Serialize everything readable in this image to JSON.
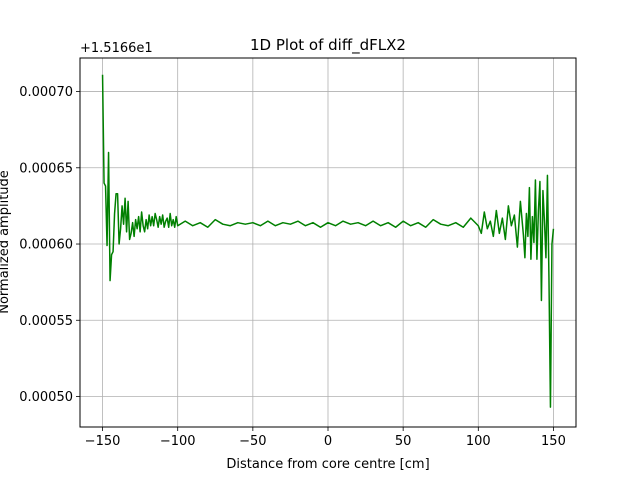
{
  "chart_data": {
    "type": "line",
    "title": "1D Plot of diff_dFLX2",
    "xlabel": "Distance from core centre [cm]",
    "ylabel": "Normalized amplitude",
    "offset_text": "+1.5166e1",
    "xlim": [
      -165,
      165
    ],
    "ylim": [
      0.00048,
      0.000722
    ],
    "xticks": [
      -150,
      -100,
      -50,
      0,
      50,
      100,
      150
    ],
    "xtick_labels": [
      "−150",
      "−100",
      "−50",
      "0",
      "50",
      "100",
      "150"
    ],
    "yticks": [
      0.0005,
      0.00055,
      0.0006,
      0.00065,
      0.0007
    ],
    "ytick_labels": [
      "0.00050",
      "0.00055",
      "0.00060",
      "0.00065",
      "0.00070"
    ],
    "grid": true,
    "series": [
      {
        "color": "#008000",
        "x": [
          -150,
          -149,
          -148,
          -147,
          -146,
          -145,
          -144,
          -143,
          -142,
          -141,
          -140,
          -139,
          -138,
          -137,
          -136,
          -135,
          -134,
          -133,
          -132,
          -131,
          -130,
          -129,
          -128,
          -127,
          -126,
          -125,
          -124,
          -123,
          -122,
          -121,
          -120,
          -119,
          -118,
          -117,
          -116,
          -115,
          -114,
          -113,
          -112,
          -111,
          -110,
          -109,
          -108,
          -107,
          -106,
          -105,
          -104,
          -103,
          -102,
          -101,
          -100,
          -95,
          -90,
          -85,
          -80,
          -75,
          -70,
          -65,
          -60,
          -55,
          -50,
          -45,
          -40,
          -35,
          -30,
          -25,
          -20,
          -15,
          -10,
          -5,
          0,
          5,
          10,
          15,
          20,
          25,
          30,
          35,
          40,
          45,
          50,
          55,
          60,
          65,
          70,
          75,
          80,
          85,
          90,
          95,
          100,
          102,
          104,
          106,
          108,
          110,
          112,
          114,
          116,
          118,
          120,
          122,
          124,
          126,
          128,
          130,
          131,
          132,
          133,
          134,
          135,
          136,
          137,
          138,
          139,
          140,
          141,
          142,
          143,
          144,
          145,
          146,
          147,
          148,
          149,
          150
        ],
        "y": [
          0.000711,
          0.00064,
          0.000638,
          0.000599,
          0.00066,
          0.000576,
          0.000593,
          0.000595,
          0.00062,
          0.000633,
          0.000633,
          0.0006,
          0.00061,
          0.000625,
          0.000613,
          0.00063,
          0.000608,
          0.000628,
          0.000603,
          0.000607,
          0.000614,
          0.000605,
          0.000616,
          0.00061,
          0.000618,
          0.000608,
          0.000621,
          0.000612,
          0.000608,
          0.000616,
          0.00061,
          0.000619,
          0.000612,
          0.000618,
          0.000612,
          0.00062,
          0.000616,
          0.000611,
          0.000618,
          0.000613,
          0.000619,
          0.000611,
          0.000615,
          0.000617,
          0.000611,
          0.00062,
          0.000612,
          0.000616,
          0.000611,
          0.000618,
          0.000612,
          0.000615,
          0.000612,
          0.000614,
          0.000611,
          0.000616,
          0.000613,
          0.000612,
          0.000614,
          0.000613,
          0.000614,
          0.000612,
          0.000615,
          0.000612,
          0.000614,
          0.000613,
          0.000615,
          0.000612,
          0.000614,
          0.000611,
          0.000614,
          0.000612,
          0.000615,
          0.000613,
          0.000614,
          0.000612,
          0.000615,
          0.000612,
          0.000614,
          0.000611,
          0.000615,
          0.000612,
          0.000614,
          0.000611,
          0.000616,
          0.000613,
          0.000612,
          0.000614,
          0.000611,
          0.000617,
          0.000612,
          0.000607,
          0.000621,
          0.00061,
          0.000615,
          0.000605,
          0.000622,
          0.000607,
          0.000617,
          0.000603,
          0.000625,
          0.000612,
          0.000619,
          0.000598,
          0.000628,
          0.000606,
          0.000591,
          0.00062,
          0.000605,
          0.000637,
          0.00059,
          0.000618,
          0.000601,
          0.000642,
          0.00059,
          0.000622,
          0.000641,
          0.000563,
          0.000635,
          0.000615,
          0.000591,
          0.000645,
          0.000578,
          0.000493,
          0.0006,
          0.00061
        ]
      }
    ]
  }
}
